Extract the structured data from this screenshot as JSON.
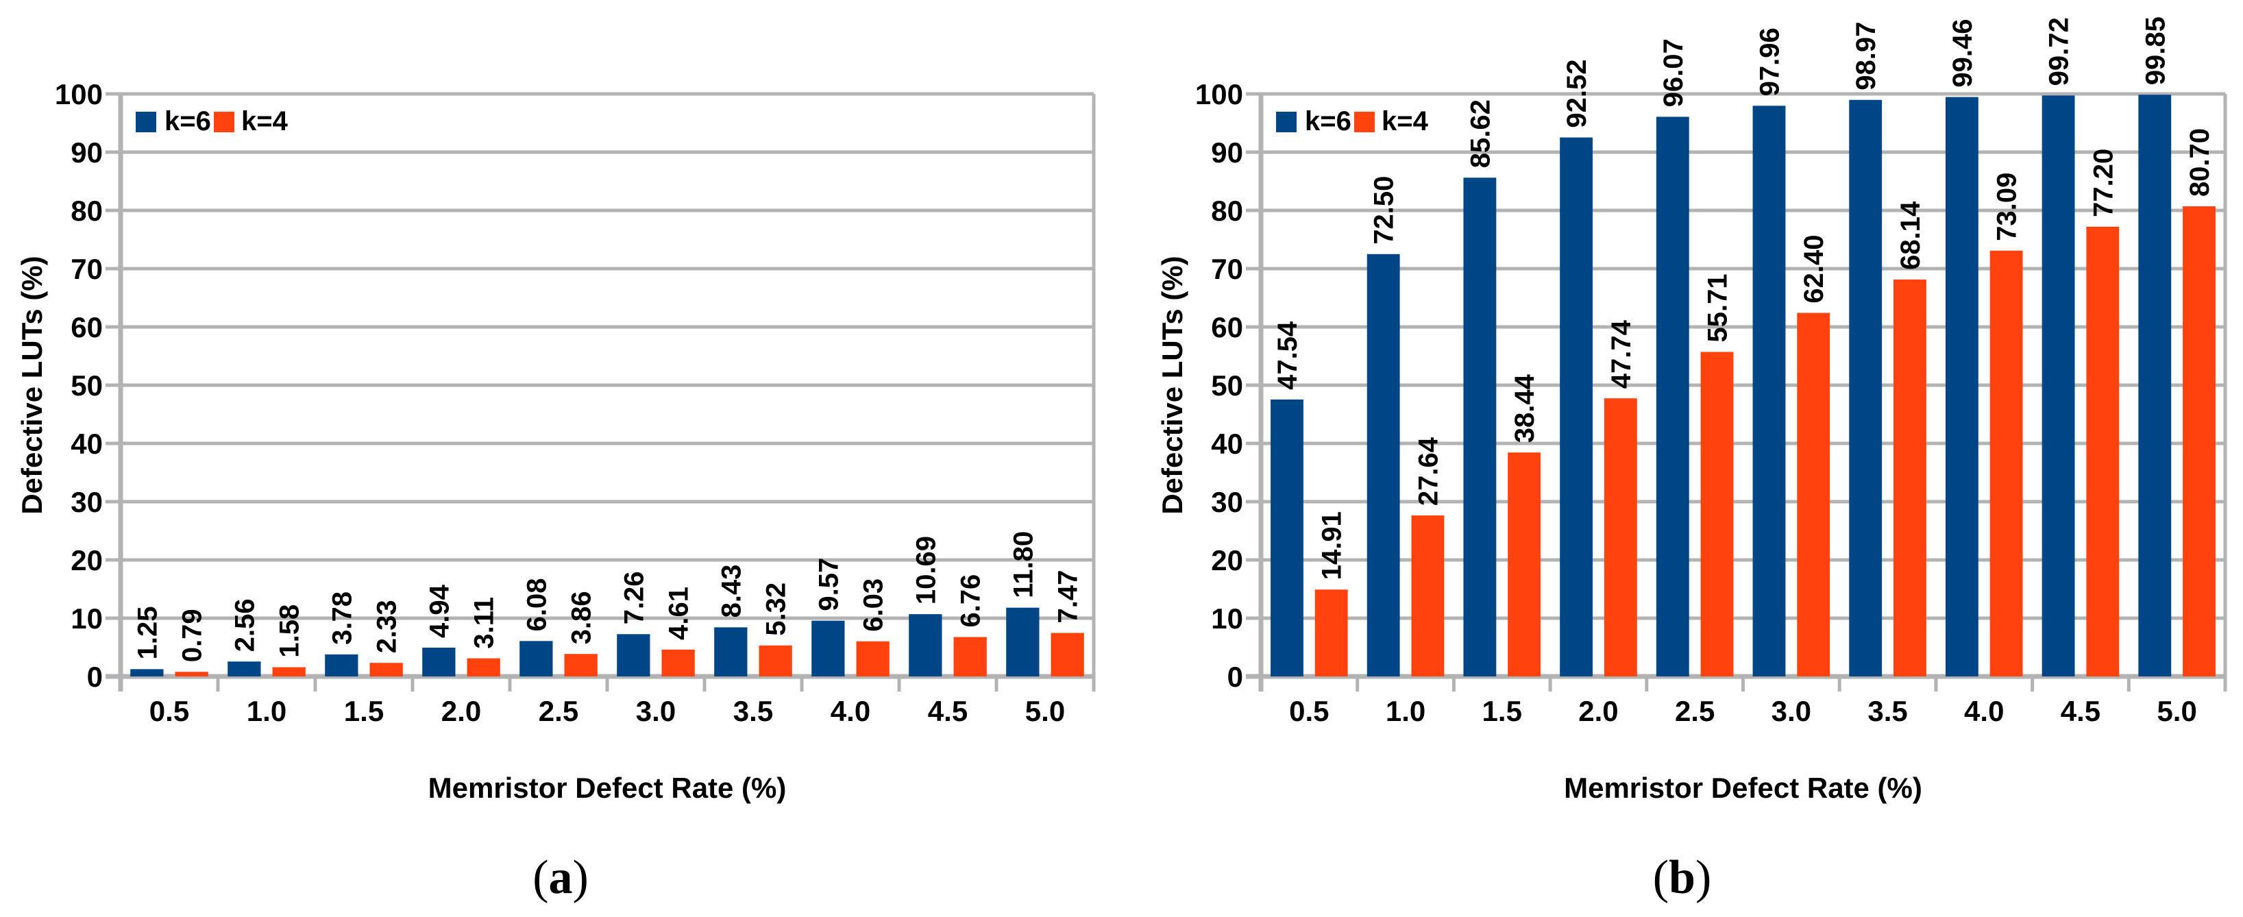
{
  "figure": {
    "background": "#ffffff",
    "grid_color": "#b3b3b3",
    "text_color": "#000000"
  },
  "chart_data": [
    {
      "id": "a",
      "type": "bar",
      "caption": {
        "open": "(",
        "letter": "a",
        "close": ")"
      },
      "xlabel": "Memristor Defect Rate (%)",
      "ylabel": "Defective LUTs (%)",
      "ylim": [
        0,
        100
      ],
      "ytick_step": 10,
      "ytick_labels": [
        "0",
        "10",
        "20",
        "30",
        "40",
        "50",
        "60",
        "70",
        "80",
        "90",
        "100"
      ],
      "grid": true,
      "legend_position": "top-left-inside",
      "categories": [
        "0.5",
        "1.0",
        "1.5",
        "2.0",
        "2.5",
        "3.0",
        "3.5",
        "4.0",
        "4.5",
        "5.0"
      ],
      "series": [
        {
          "name": "k=6",
          "color": "#004586",
          "values": [
            1.25,
            2.56,
            3.78,
            4.94,
            6.08,
            7.26,
            8.43,
            9.57,
            10.69,
            11.8
          ],
          "labels": [
            "1.25",
            "2.56",
            "3.78",
            "4.94",
            "6.08",
            "7.26",
            "8.43",
            "9.57",
            "10.69",
            "11.80"
          ]
        },
        {
          "name": "k=4",
          "color": "#FF420E",
          "values": [
            0.79,
            1.58,
            2.33,
            3.11,
            3.86,
            4.61,
            5.32,
            6.03,
            6.76,
            7.47
          ],
          "labels": [
            "0.79",
            "1.58",
            "2.33",
            "3.11",
            "3.86",
            "4.61",
            "5.32",
            "6.03",
            "6.76",
            "7.47"
          ]
        }
      ]
    },
    {
      "id": "b",
      "type": "bar",
      "caption": {
        "open": "(",
        "letter": "b",
        "close": ")"
      },
      "xlabel": "Memristor Defect Rate (%)",
      "ylabel": "Defective LUTs (%)",
      "ylim": [
        0,
        100
      ],
      "ytick_step": 10,
      "ytick_labels": [
        "0",
        "10",
        "20",
        "30",
        "40",
        "50",
        "60",
        "70",
        "80",
        "90",
        "100"
      ],
      "grid": true,
      "legend_position": "top-left-inside",
      "categories": [
        "0.5",
        "1.0",
        "1.5",
        "2.0",
        "2.5",
        "3.0",
        "3.5",
        "4.0",
        "4.5",
        "5.0"
      ],
      "series": [
        {
          "name": "k=6",
          "color": "#004586",
          "values": [
            47.54,
            72.5,
            85.62,
            92.52,
            96.07,
            97.96,
            98.97,
            99.46,
            99.72,
            99.85
          ],
          "labels": [
            "47.54",
            "72.50",
            "85.62",
            "92.52",
            "96.07",
            "97.96",
            "98.97",
            "99.46",
            "99.72",
            "99.85"
          ]
        },
        {
          "name": "k=4",
          "color": "#FF420E",
          "values": [
            14.91,
            27.64,
            38.44,
            47.74,
            55.71,
            62.4,
            68.14,
            73.09,
            77.2,
            80.7
          ],
          "labels": [
            "14.91",
            "27.64",
            "38.44",
            "47.74",
            "55.71",
            "62.40",
            "68.14",
            "73.09",
            "77.20",
            "80.70"
          ]
        }
      ]
    }
  ]
}
